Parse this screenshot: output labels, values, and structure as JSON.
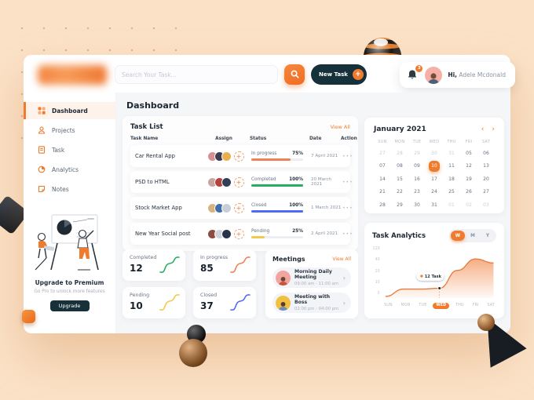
{
  "topbar": {
    "search_placeholder": "Search Your Task...",
    "new_task_label": "New Task",
    "notification_count": "3",
    "greeting_prefix": "Hi,",
    "user_name": "Adele Mcdonald"
  },
  "sidebar": {
    "items": [
      {
        "label": "Dashboard"
      },
      {
        "label": "Projects"
      },
      {
        "label": "Task"
      },
      {
        "label": "Analytics"
      },
      {
        "label": "Notes"
      }
    ],
    "upgrade_title": "Upgrade to Premium",
    "upgrade_subtitle": "Go Pro to unlock more features",
    "upgrade_button": "Upgrade"
  },
  "page_title": "Dashboard",
  "task_list": {
    "title": "Task List",
    "view_all": "View All",
    "columns": [
      "Task Name",
      "Assign",
      "Status",
      "Date",
      "Action"
    ],
    "rows": [
      {
        "name": "Car Rental App",
        "status": "In progress",
        "percent": "75%",
        "progress": 75,
        "color": "#EE8254",
        "date": "7 April 2021"
      },
      {
        "name": "PSD to HTML",
        "status": "Completed",
        "percent": "100%",
        "progress": 100,
        "color": "#27AE60",
        "date": "20 March 2021"
      },
      {
        "name": "Stock Market App",
        "status": "Closed",
        "percent": "100%",
        "progress": 100,
        "color": "#4F6AF4",
        "date": "1 March 2021"
      },
      {
        "name": "New Year Social post",
        "status": "Pending",
        "percent": "25%",
        "progress": 25,
        "color": "#F2C94C",
        "date": "2 April 2021"
      }
    ]
  },
  "stats": [
    {
      "label": "Completed",
      "value": "12",
      "color": "#27AE60"
    },
    {
      "label": "In progress",
      "value": "85",
      "color": "#EE8254"
    },
    {
      "label": "Pending",
      "value": "10",
      "color": "#F2C94C"
    },
    {
      "label": "Closed",
      "value": "37",
      "color": "#4F6AF4"
    }
  ],
  "meetings": {
    "title": "Meetings",
    "view_all": "View All",
    "items": [
      {
        "title": "Morning Daily Meeting",
        "time": "09:00 am - 11:00 am"
      },
      {
        "title": "Meeting with Boss",
        "time": "02:00 pm - 04:00 pm"
      }
    ]
  },
  "calendar": {
    "month": "January 2021",
    "prev": "‹",
    "next": "›",
    "day_headers": [
      "SUN",
      "MON",
      "TUE",
      "WED",
      "THU",
      "FRI",
      "SAT"
    ],
    "selected_day": "10",
    "weeks": [
      [
        {
          "d": "27",
          "muted": true
        },
        {
          "d": "28",
          "muted": true
        },
        {
          "d": "29",
          "muted": true
        },
        {
          "d": "30",
          "muted": true
        },
        {
          "d": "31",
          "muted": true
        },
        {
          "d": "05"
        },
        {
          "d": "06"
        }
      ],
      [
        {
          "d": "07"
        },
        {
          "d": "08"
        },
        {
          "d": "09"
        },
        {
          "d": "10",
          "sel": true
        },
        {
          "d": "11"
        },
        {
          "d": "12"
        },
        {
          "d": "13"
        }
      ],
      [
        {
          "d": "14"
        },
        {
          "d": "15"
        },
        {
          "d": "16"
        },
        {
          "d": "17"
        },
        {
          "d": "18"
        },
        {
          "d": "19"
        },
        {
          "d": "20"
        }
      ],
      [
        {
          "d": "21"
        },
        {
          "d": "22"
        },
        {
          "d": "23"
        },
        {
          "d": "24"
        },
        {
          "d": "25"
        },
        {
          "d": "26"
        },
        {
          "d": "27"
        }
      ],
      [
        {
          "d": "28"
        },
        {
          "d": "29"
        },
        {
          "d": "30"
        },
        {
          "d": "31"
        },
        {
          "d": "01",
          "muted": true
        },
        {
          "d": "02",
          "muted": true
        },
        {
          "d": "03",
          "muted": true
        }
      ]
    ]
  },
  "analytics": {
    "title": "Task Analytics",
    "toggles": [
      "W",
      "M",
      "Y"
    ],
    "active_toggle": "W",
    "tooltip": "12 Task",
    "marker_index": 3,
    "accent": "#EF7B2E"
  },
  "chart_data": {
    "type": "area",
    "title": "Task Analytics",
    "x": [
      "SUN",
      "MON",
      "TUE",
      "WED",
      "THU",
      "FRI",
      "SAT"
    ],
    "values": [
      2,
      11,
      11,
      12,
      34,
      48,
      43
    ],
    "y_ticks": [
      "120",
      "40",
      "20",
      "10",
      "0"
    ],
    "ymax": 55,
    "annotation": {
      "x": "WED",
      "label": "12 Task",
      "value": 12
    },
    "legend": "none",
    "grid": false
  }
}
